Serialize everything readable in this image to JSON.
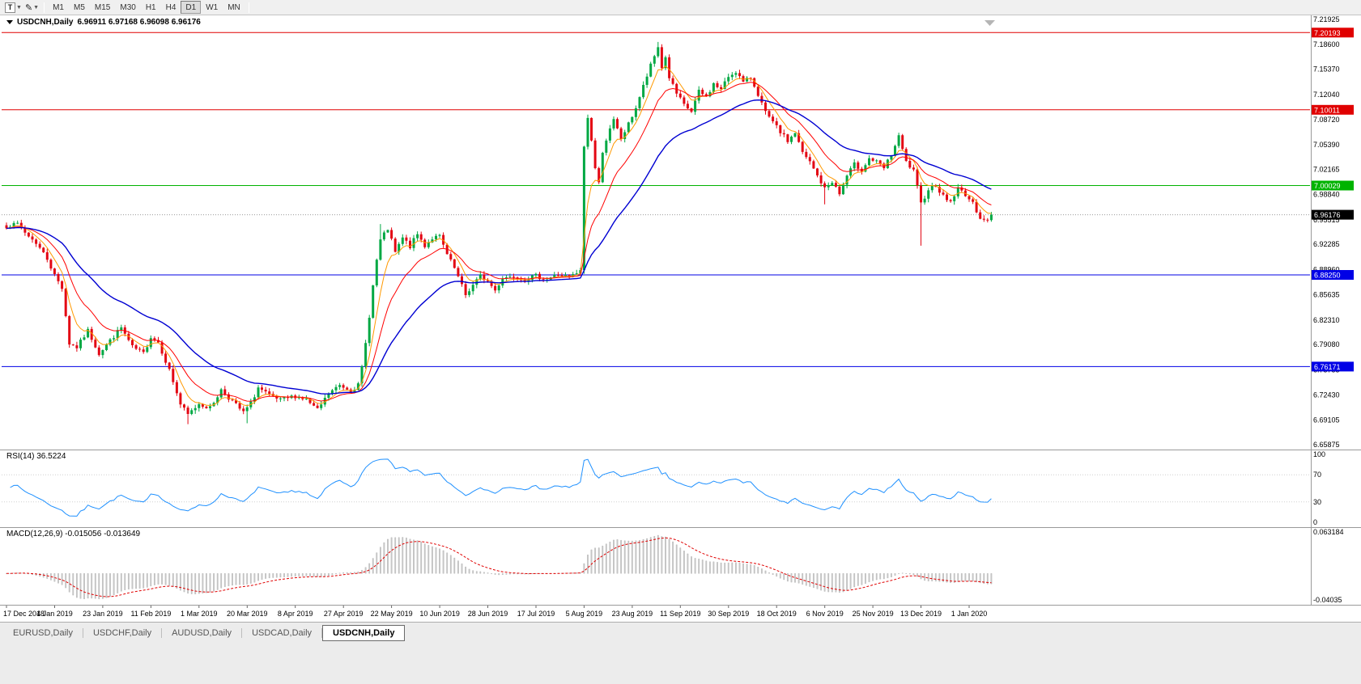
{
  "toolbar": {
    "tools": [
      {
        "name": "text-label-tool",
        "glyph": "T"
      },
      {
        "name": "draw-tool",
        "glyph": "✎"
      }
    ],
    "timeframes": [
      "M1",
      "M5",
      "M15",
      "M30",
      "H1",
      "H4",
      "D1",
      "W1",
      "MN"
    ],
    "active_timeframe": "D1"
  },
  "chart": {
    "title": "USDCNH,Daily",
    "ohlc": "6.96911 6.97168 6.96098 6.96176",
    "y_axis_labels": [
      "7.21925",
      "7.18600",
      "7.15370",
      "7.12040",
      "7.08720",
      "7.05390",
      "7.02165",
      "6.98840",
      "6.95515",
      "6.92285",
      "6.88960",
      "6.85635",
      "6.82310",
      "6.79080",
      "6.75755",
      "6.72430",
      "6.69105",
      "6.65875"
    ],
    "x_axis_labels": [
      "17 Dec 2018",
      "4 Jan 2019",
      "23 Jan 2019",
      "11 Feb 2019",
      "1 Mar 2019",
      "20 Mar 2019",
      "8 Apr 2019",
      "27 Apr 2019",
      "22 May 2019",
      "10 Jun 2019",
      "28 Jun 2019",
      "17 Jul 2019",
      "5 Aug 2019",
      "23 Aug 2019",
      "11 Sep 2019",
      "30 Sep 2019",
      "18 Oct 2019",
      "6 Nov 2019",
      "25 Nov 2019",
      "13 Dec 2019",
      "1 Jan 2020"
    ],
    "h_lines": [
      {
        "value": "7.20193",
        "price": 7.20193,
        "color": "#e00000"
      },
      {
        "value": "7.10011",
        "price": 7.10011,
        "color": "#e00000"
      },
      {
        "value": "7.00029",
        "price": 7.00029,
        "color": "#00b300"
      },
      {
        "value": "6.88250",
        "price": 6.8825,
        "color": "#0000e6"
      },
      {
        "value": "6.76171",
        "price": 6.76171,
        "color": "#0000e6"
      }
    ],
    "current_price": {
      "value": "6.96176",
      "price": 6.96176,
      "color": "#000000"
    }
  },
  "rsi": {
    "label": "RSI(14) 36.5224",
    "levels": [
      {
        "v": 100,
        "label": "100",
        "dotted": false
      },
      {
        "v": 70,
        "label": "70",
        "dotted": true
      },
      {
        "v": 30,
        "label": "30",
        "dotted": true
      },
      {
        "v": 0,
        "label": "0",
        "dotted": false
      }
    ]
  },
  "macd": {
    "label": "MACD(12,26,9) -0.015056 -0.013649",
    "max": 0.063184,
    "min": -0.04035,
    "axis_labels": [
      {
        "v": 0.063184,
        "label": "0.063184"
      },
      {
        "v": -0.04035,
        "label": "-0.04035"
      }
    ]
  },
  "tabs": [
    {
      "label": "EURUSD,Daily",
      "active": false
    },
    {
      "label": "USDCHF,Daily",
      "active": false
    },
    {
      "label": "AUDUSD,Daily",
      "active": false
    },
    {
      "label": "USDCAD,Daily",
      "active": false
    },
    {
      "label": "USDCNH,Daily",
      "active": true
    }
  ],
  "colors": {
    "up": "#00a843",
    "down": "#e30613",
    "ma_fast": "#ff9900",
    "ma_mid": "#ff0000",
    "ma_slow": "#0000d2",
    "rsi": "#1e90ff",
    "macd_hist": "#c9c9c9",
    "macd_signal": "#e00000"
  },
  "chart_data": {
    "type": "candlestick",
    "symbol": "USDCNH",
    "timeframe": "Daily",
    "bar_count": 267,
    "price_range": [
      6.65875,
      7.21925
    ],
    "seed": 7,
    "jitter": 0.006,
    "last_close": 6.96176,
    "rsi_period": 14,
    "macd_params": [
      12,
      26,
      9
    ],
    "ma_periods": [
      6,
      14,
      34
    ],
    "price_anchors": [
      [
        0,
        6.944
      ],
      [
        2,
        6.9535
      ],
      [
        5,
        6.938
      ],
      [
        8,
        6.925
      ],
      [
        11,
        6.904
      ],
      [
        13,
        6.882
      ],
      [
        15,
        6.866
      ],
      [
        17,
        6.792
      ],
      [
        19,
        6.787
      ],
      [
        22,
        6.809
      ],
      [
        25,
        6.779
      ],
      [
        28,
        6.796
      ],
      [
        31,
        6.813
      ],
      [
        34,
        6.787
      ],
      [
        37,
        6.779
      ],
      [
        39,
        6.801
      ],
      [
        41,
        6.794
      ],
      [
        44,
        6.757
      ],
      [
        47,
        6.712
      ],
      [
        49,
        6.698
      ],
      [
        52,
        6.713
      ],
      [
        55,
        6.707
      ],
      [
        58,
        6.731
      ],
      [
        61,
        6.716
      ],
      [
        64,
        6.701
      ],
      [
        66,
        6.713
      ],
      [
        68,
        6.734
      ],
      [
        71,
        6.723
      ],
      [
        74,
        6.717
      ],
      [
        78,
        6.723
      ],
      [
        81,
        6.718
      ],
      [
        84,
        6.704
      ],
      [
        87,
        6.726
      ],
      [
        90,
        6.737
      ],
      [
        93,
        6.731
      ],
      [
        95,
        6.737
      ],
      [
        96,
        6.76
      ],
      [
        97,
        6.792
      ],
      [
        98,
        6.829
      ],
      [
        99,
        6.868
      ],
      [
        100,
        6.902
      ],
      [
        101,
        6.928
      ],
      [
        103,
        6.943
      ],
      [
        105,
        6.912
      ],
      [
        107,
        6.931
      ],
      [
        109,
        6.92
      ],
      [
        111,
        6.936
      ],
      [
        113,
        6.921
      ],
      [
        115,
        6.931
      ],
      [
        117,
        6.933
      ],
      [
        119,
        6.909
      ],
      [
        121,
        6.891
      ],
      [
        124,
        6.856
      ],
      [
        126,
        6.869
      ],
      [
        128,
        6.881
      ],
      [
        130,
        6.874
      ],
      [
        132,
        6.862
      ],
      [
        134,
        6.879
      ],
      [
        137,
        6.881
      ],
      [
        140,
        6.877
      ],
      [
        143,
        6.881
      ],
      [
        146,
        6.877
      ],
      [
        149,
        6.883
      ],
      [
        152,
        6.879
      ],
      [
        155,
        6.887
      ],
      [
        156,
        7.052
      ],
      [
        157,
        7.089
      ],
      [
        158,
        7.061
      ],
      [
        159,
        7.023
      ],
      [
        160,
        7.003
      ],
      [
        161,
        7.046
      ],
      [
        162,
        7.061
      ],
      [
        164,
        7.086
      ],
      [
        166,
        7.062
      ],
      [
        168,
        7.081
      ],
      [
        170,
        7.103
      ],
      [
        172,
        7.131
      ],
      [
        174,
        7.158
      ],
      [
        176,
        7.183
      ],
      [
        177,
        7.156
      ],
      [
        178,
        7.169
      ],
      [
        179,
        7.143
      ],
      [
        181,
        7.121
      ],
      [
        183,
        7.106
      ],
      [
        185,
        7.098
      ],
      [
        187,
        7.124
      ],
      [
        189,
        7.117
      ],
      [
        191,
        7.134
      ],
      [
        193,
        7.127
      ],
      [
        195,
        7.144
      ],
      [
        197,
        7.151
      ],
      [
        199,
        7.136
      ],
      [
        201,
        7.143
      ],
      [
        203,
        7.121
      ],
      [
        205,
        7.096
      ],
      [
        207,
        7.083
      ],
      [
        209,
        7.071
      ],
      [
        211,
        7.059
      ],
      [
        213,
        7.07
      ],
      [
        215,
        7.043
      ],
      [
        217,
        7.031
      ],
      [
        219,
        7.013
      ],
      [
        221,
        6.996
      ],
      [
        223,
        7.006
      ],
      [
        225,
        6.989
      ],
      [
        227,
        7.013
      ],
      [
        229,
        7.028
      ],
      [
        231,
        7.021
      ],
      [
        233,
        7.036
      ],
      [
        235,
        7.031
      ],
      [
        237,
        7.023
      ],
      [
        239,
        7.041
      ],
      [
        241,
        7.064
      ],
      [
        243,
        7.031
      ],
      [
        245,
        7.019
      ],
      [
        247,
        6.976
      ],
      [
        249,
        6.996
      ],
      [
        251,
        7.001
      ],
      [
        253,
        6.986
      ],
      [
        255,
        6.979
      ],
      [
        257,
        6.996
      ],
      [
        259,
        6.989
      ],
      [
        261,
        6.976
      ],
      [
        263,
        6.959
      ],
      [
        265,
        6.953
      ],
      [
        266,
        6.96176
      ]
    ],
    "wick_overrides": [
      [
        49,
        "low",
        6.6858
      ],
      [
        65,
        "low",
        6.687
      ],
      [
        101,
        "high",
        6.9495
      ],
      [
        156,
        "low",
        6.884
      ],
      [
        176,
        "high",
        7.1895
      ],
      [
        221,
        "low",
        6.9755
      ],
      [
        247,
        "low",
        6.921
      ]
    ]
  }
}
